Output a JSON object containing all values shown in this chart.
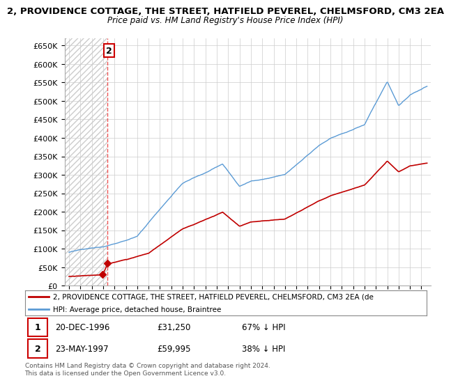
{
  "title1": "2, PROVIDENCE COTTAGE, THE STREET, HATFIELD PEVEREL, CHELMSFORD, CM3 2EA",
  "title2": "Price paid vs. HM Land Registry's House Price Index (HPI)",
  "ylim": [
    0,
    670000
  ],
  "yticks": [
    0,
    50000,
    100000,
    150000,
    200000,
    250000,
    300000,
    350000,
    400000,
    450000,
    500000,
    550000,
    600000,
    650000
  ],
  "ytick_labels": [
    "£0",
    "£50K",
    "£100K",
    "£150K",
    "£200K",
    "£250K",
    "£300K",
    "£350K",
    "£400K",
    "£450K",
    "£500K",
    "£550K",
    "£600K",
    "£650K"
  ],
  "hpi_color": "#5b9bd5",
  "price_color": "#c00000",
  "marker_color": "#c00000",
  "annotation_box_color": "#cc0000",
  "dashed_line_color": "#ee4444",
  "legend_label_price": "2, PROVIDENCE COTTAGE, THE STREET, HATFIELD PEVEREL, CHELMSFORD, CM3 2EA (de",
  "legend_label_hpi": "HPI: Average price, detached house, Braintree",
  "table_rows": [
    {
      "num": "1",
      "date": "20-DEC-1996",
      "price": "£31,250",
      "hpi": "67% ↓ HPI"
    },
    {
      "num": "2",
      "date": "23-MAY-1997",
      "price": "£59,995",
      "hpi": "38% ↓ HPI"
    }
  ],
  "footnote": "Contains HM Land Registry data © Crown copyright and database right 2024.\nThis data is licensed under the Open Government Licence v3.0.",
  "sale1_year": 1996.97,
  "sale1_price": 31250,
  "sale2_year": 1997.39,
  "sale2_price": 59995,
  "dashed_line_year": 1997.39,
  "hatch_end_year": 1997.39,
  "xlim_left": 1993.6,
  "xlim_right": 2025.8
}
